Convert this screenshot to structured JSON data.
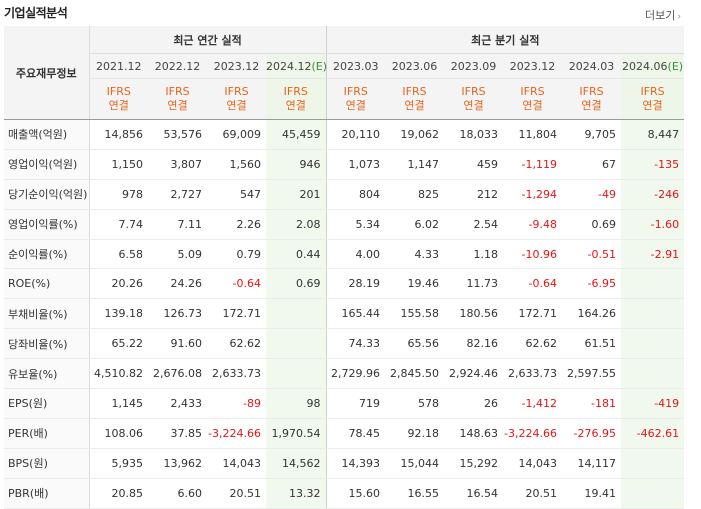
{
  "section_title": "기업실적분석",
  "more_link": "더보기",
  "header": {
    "row_label": "주요재무정보",
    "annual_group": "최근 연간 실적",
    "quarter_group": "최근 분기 실적",
    "ifrs_line1": "IFRS",
    "ifrs_line2": "연결",
    "annual_periods": [
      "2021.12",
      "2022.12",
      "2023.12",
      "2024.12"
    ],
    "quarter_periods": [
      "2023.03",
      "2023.06",
      "2023.09",
      "2023.12",
      "2024.03",
      "2024.06"
    ],
    "estimate_marker": "(E)"
  },
  "rows": [
    {
      "label": "매출액(억원)",
      "annual": [
        "14,856",
        "53,576",
        "69,009",
        "45,459"
      ],
      "quarter": [
        "20,110",
        "19,062",
        "18,033",
        "11,804",
        "9,705",
        "8,447"
      ]
    },
    {
      "label": "영업이익(억원)",
      "annual": [
        "1,150",
        "3,807",
        "1,560",
        "946"
      ],
      "quarter": [
        "1,073",
        "1,147",
        "459",
        "-1,119",
        "67",
        "-135"
      ]
    },
    {
      "label": "당기순이익(억원)",
      "annual": [
        "978",
        "2,727",
        "547",
        "201"
      ],
      "quarter": [
        "804",
        "825",
        "212",
        "-1,294",
        "-49",
        "-246"
      ]
    },
    {
      "label": "영업이익률(%)",
      "annual": [
        "7.74",
        "7.11",
        "2.26",
        "2.08"
      ],
      "quarter": [
        "5.34",
        "6.02",
        "2.54",
        "-9.48",
        "0.69",
        "-1.60"
      ]
    },
    {
      "label": "순이익률(%)",
      "annual": [
        "6.58",
        "5.09",
        "0.79",
        "0.44"
      ],
      "quarter": [
        "4.00",
        "4.33",
        "1.18",
        "-10.96",
        "-0.51",
        "-2.91"
      ]
    },
    {
      "label": "ROE(%)",
      "annual": [
        "20.26",
        "24.26",
        "-0.64",
        "0.69"
      ],
      "quarter": [
        "28.19",
        "19.46",
        "11.73",
        "-0.64",
        "-6.95",
        ""
      ]
    },
    {
      "label": "부채비율(%)",
      "annual": [
        "139.18",
        "126.73",
        "172.71",
        ""
      ],
      "quarter": [
        "165.44",
        "155.58",
        "180.56",
        "172.71",
        "164.26",
        ""
      ]
    },
    {
      "label": "당좌비율(%)",
      "annual": [
        "65.22",
        "91.60",
        "62.62",
        ""
      ],
      "quarter": [
        "74.33",
        "65.56",
        "82.16",
        "62.62",
        "61.51",
        ""
      ]
    },
    {
      "label": "유보율(%)",
      "annual": [
        "4,510.82",
        "2,676.08",
        "2,633.73",
        ""
      ],
      "quarter": [
        "2,729.96",
        "2,845.50",
        "2,924.46",
        "2,633.73",
        "2,597.55",
        ""
      ]
    },
    {
      "label": "EPS(원)",
      "annual": [
        "1,145",
        "2,433",
        "-89",
        "98"
      ],
      "quarter": [
        "719",
        "578",
        "26",
        "-1,412",
        "-181",
        "-419"
      ]
    },
    {
      "label": "PER(배)",
      "annual": [
        "108.06",
        "37.85",
        "-3,224.66",
        "1,970.54"
      ],
      "quarter": [
        "78.45",
        "92.18",
        "148.63",
        "-3,224.66",
        "-276.95",
        "-462.61"
      ]
    },
    {
      "label": "BPS(원)",
      "annual": [
        "5,935",
        "13,962",
        "14,043",
        "14,562"
      ],
      "quarter": [
        "14,393",
        "15,044",
        "15,292",
        "14,043",
        "14,117",
        ""
      ]
    },
    {
      "label": "PBR(배)",
      "annual": [
        "20.85",
        "6.60",
        "20.51",
        "13.32"
      ],
      "quarter": [
        "15.60",
        "16.55",
        "16.54",
        "20.51",
        "19.41",
        ""
      ]
    }
  ]
}
